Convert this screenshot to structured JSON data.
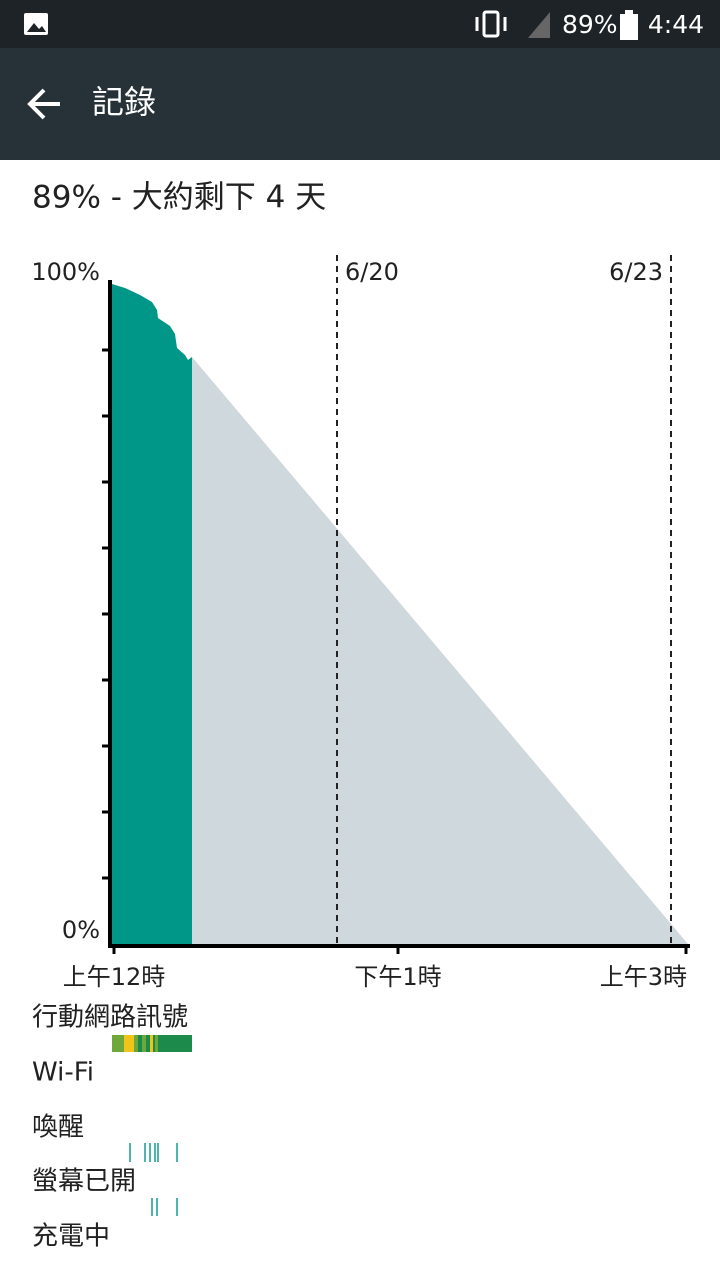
{
  "status_bar": {
    "battery": "89%",
    "time": "4:44"
  },
  "app_bar": {
    "title": "記錄"
  },
  "summary": "89% - 大約剩下 4 天",
  "chart": {
    "y_top": "100%",
    "y_bottom": "0%",
    "dates": [
      "6/20",
      "6/23"
    ],
    "x_labels": [
      "上午12時",
      "下午1時",
      "上午3時"
    ]
  },
  "rows": [
    "行動網路訊號",
    "Wi-Fi",
    "喚醒",
    "螢幕已開",
    "充電中"
  ]
}
